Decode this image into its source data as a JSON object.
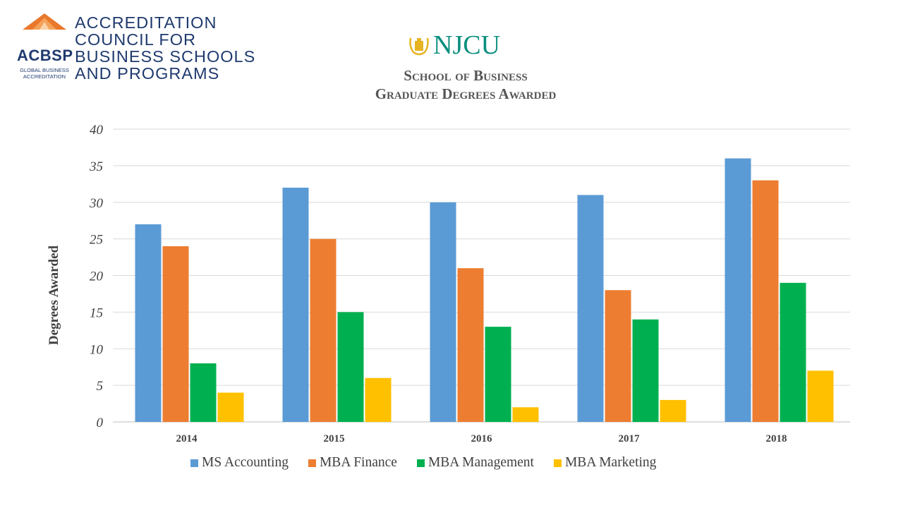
{
  "header": {
    "acbsp_lines": [
      "ACCREDITATION",
      "COUNCIL FOR",
      "BUSINESS SCHOOLS",
      "AND PROGRAMS"
    ],
    "acbsp_abbr": "ACBSP",
    "acbsp_sub_lines": [
      "GLOBAL BUSINESS",
      "ACCREDITATION"
    ],
    "njcu_text": "NJCU",
    "title_line1": "School of Business",
    "title_line2": "Graduate Degrees Awarded"
  },
  "colors": {
    "acbsp_orange": "#e9782b",
    "acbsp_blue": "#1f3a6e",
    "njcu_teal": "#0a8f7e",
    "njcu_gold": "#e6b422"
  },
  "chart_data": {
    "type": "bar",
    "title": "Graduate Degrees Awarded",
    "xlabel": "",
    "ylabel": "Degrees Awarded",
    "ylim": [
      0,
      40
    ],
    "yticks": [
      0,
      5,
      10,
      15,
      20,
      25,
      30,
      35,
      40
    ],
    "grid": true,
    "legend_position": "bottom",
    "categories": [
      "2014",
      "2015",
      "2016",
      "2017",
      "2018"
    ],
    "series": [
      {
        "name": "MS Accounting",
        "color": "#5b9bd5",
        "values": [
          27,
          32,
          30,
          31,
          36
        ]
      },
      {
        "name": "MBA Finance",
        "color": "#ed7d31",
        "values": [
          24,
          25,
          21,
          18,
          33
        ]
      },
      {
        "name": "MBA Management",
        "color": "#00b050",
        "values": [
          8,
          15,
          13,
          14,
          19
        ]
      },
      {
        "name": "MBA Marketing",
        "color": "#ffc000",
        "values": [
          4,
          6,
          2,
          3,
          7
        ]
      }
    ]
  }
}
